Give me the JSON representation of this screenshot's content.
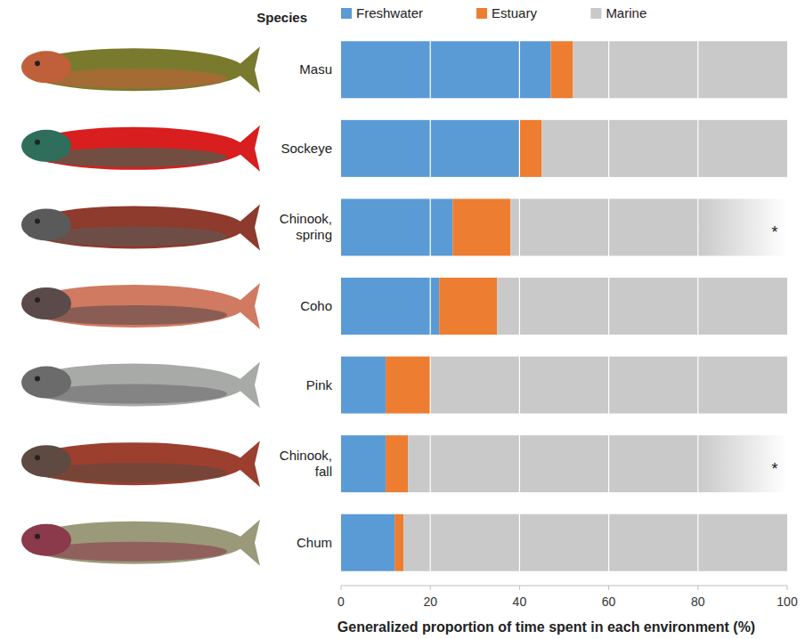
{
  "chart_data": {
    "type": "bar",
    "orientation": "horizontal",
    "stacked": true,
    "grid": true,
    "legend": "top",
    "ylabel": "Species",
    "xlabel": "Generalized proportion of time spent in each environment (%)",
    "categories": [
      "Masu",
      "Sockeye",
      "Chinook, spring",
      "Coho",
      "Pink",
      "Chinook, fall",
      "Chum"
    ],
    "series": [
      {
        "name": "Freshwater",
        "color": "#5b9bd5",
        "values": [
          47,
          40,
          25,
          22,
          10,
          10,
          12
        ]
      },
      {
        "name": "Estuary",
        "color": "#ed7d31",
        "values": [
          5,
          5,
          13,
          13,
          10,
          5,
          2
        ]
      },
      {
        "name": "Marine",
        "color": "#c9c9c9",
        "values": [
          48,
          55,
          62,
          65,
          80,
          85,
          86
        ]
      }
    ],
    "xlim": [
      0,
      100
    ],
    "xticks": [
      0,
      20,
      40,
      60,
      80,
      100
    ],
    "annotations": [
      {
        "text": "*",
        "category": "Chinook, spring"
      },
      {
        "text": "*",
        "category": "Chinook, fall"
      }
    ]
  }
}
